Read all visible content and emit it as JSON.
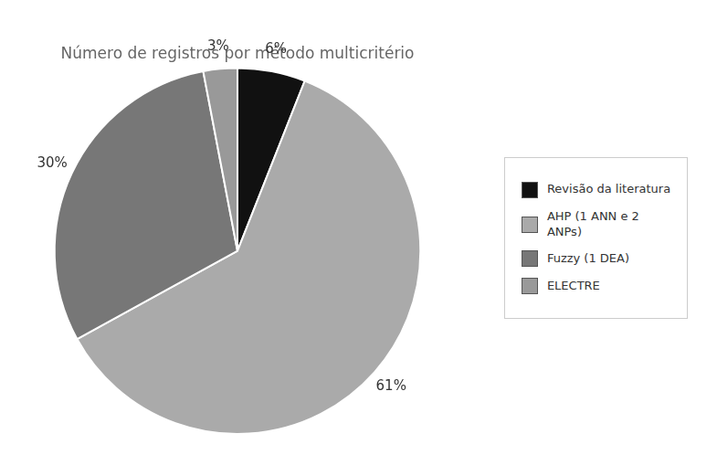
{
  "chart_data": {
    "type": "pie",
    "title": "Número de registros por método multicritério",
    "categories": [
      "Revisão da literatura",
      "AHP (1 ANN e 2\nANPs)",
      "Fuzzy (1 DEA)",
      "ELECTRE"
    ],
    "values": [
      6,
      61,
      30,
      3
    ],
    "value_labels": [
      "6%",
      "61%",
      "30%",
      "3%"
    ],
    "colors": [
      "#111111",
      "#aaaaaa",
      "#777777",
      "#999999"
    ],
    "data_labels": true,
    "legend": "right"
  }
}
